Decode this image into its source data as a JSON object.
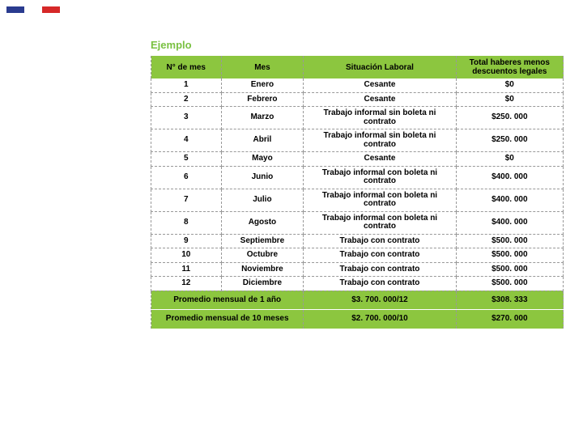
{
  "flag_colors": [
    "#2a3b8f",
    "#ffffff",
    "#d62828"
  ],
  "title": "Ejemplo",
  "table": {
    "columns": [
      "N° de mes",
      "Mes",
      "Situación Laboral",
      "Total haberes menos descuentos legales"
    ],
    "rows": [
      [
        "1",
        "Enero",
        "Cesante",
        "$0"
      ],
      [
        "2",
        "Febrero",
        "Cesante",
        "$0"
      ],
      [
        "3",
        "Marzo",
        "Trabajo informal sin boleta ni contrato",
        "$250. 000"
      ],
      [
        "4",
        "Abril",
        "Trabajo informal sin boleta ni contrato",
        "$250. 000"
      ],
      [
        "5",
        "Mayo",
        "Cesante",
        "$0"
      ],
      [
        "6",
        "Junio",
        "Trabajo informal con boleta ni contrato",
        "$400. 000"
      ],
      [
        "7",
        "Julio",
        "Trabajo informal con boleta ni contrato",
        "$400. 000"
      ],
      [
        "8",
        "Agosto",
        "Trabajo informal con boleta ni contrato",
        "$400. 000"
      ],
      [
        "9",
        "Septiembre",
        "Trabajo con contrato",
        "$500. 000"
      ],
      [
        "10",
        "Octubre",
        "Trabajo con contrato",
        "$500. 000"
      ],
      [
        "11",
        "Noviembre",
        "Trabajo con contrato",
        "$500. 000"
      ],
      [
        "12",
        "Diciembre",
        "Trabajo con contrato",
        "$500. 000"
      ]
    ],
    "footer": [
      {
        "label": "Promedio mensual de 1 año",
        "calc": "$3. 700. 000/12",
        "result": "$308. 333"
      },
      {
        "label": "Promedio mensual de 10 meses",
        "calc": "$2. 700. 000/10",
        "result": "$270. 000"
      }
    ]
  },
  "style": {
    "header_bg": "#8cc63f",
    "title_color": "#7ac142",
    "border_color": "#999999",
    "background": "#ffffff"
  }
}
